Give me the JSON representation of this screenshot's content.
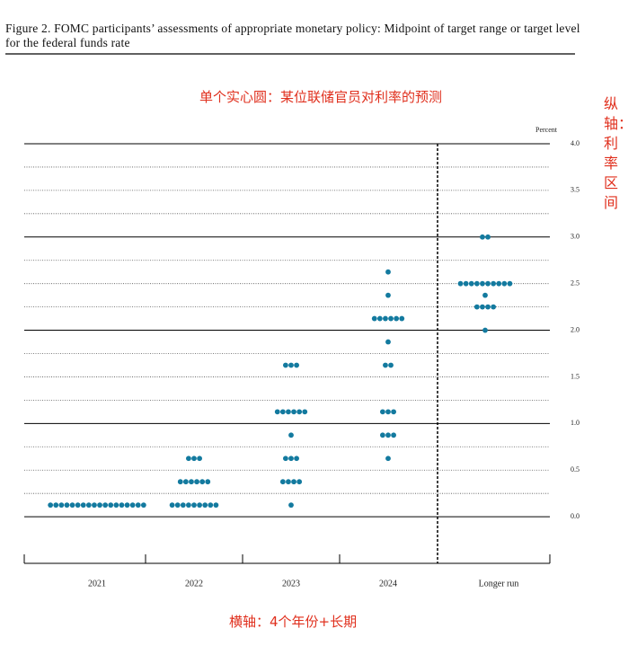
{
  "chart_data": {
    "type": "dot",
    "title": "Figure 2.  FOMC participants’ assessments of appropriate monetary policy: Midpoint of target range or target level for the federal funds rate",
    "y_unit": "Percent",
    "annotations": [
      "单个实心圆：某位联储官员对利率的预测",
      "纵轴：利率区间",
      "横轴：4个年份+长期"
    ],
    "categories": [
      "2021",
      "2022",
      "2023",
      "2024",
      "Longer run"
    ],
    "color": "#137a9f",
    "values": [
      [
        0.125,
        0.125,
        0.125,
        0.125,
        0.125,
        0.125,
        0.125,
        0.125,
        0.125,
        0.125,
        0.125,
        0.125,
        0.125,
        0.125,
        0.125,
        0.125,
        0.125,
        0.125
      ],
      [
        0.125,
        0.125,
        0.125,
        0.125,
        0.125,
        0.125,
        0.125,
        0.125,
        0.125,
        0.375,
        0.375,
        0.375,
        0.375,
        0.375,
        0.375,
        0.625,
        0.625,
        0.625
      ],
      [
        0.125,
        0.375,
        0.375,
        0.375,
        0.375,
        0.625,
        0.625,
        0.625,
        0.875,
        1.125,
        1.125,
        1.125,
        1.125,
        1.125,
        1.125,
        1.625,
        1.625,
        1.625
      ],
      [
        0.625,
        0.875,
        0.875,
        0.875,
        1.125,
        1.125,
        1.125,
        1.625,
        1.625,
        1.875,
        2.125,
        2.125,
        2.125,
        2.125,
        2.125,
        2.125,
        2.375,
        2.625
      ],
      [
        2.0,
        2.25,
        2.25,
        2.25,
        2.25,
        2.375,
        2.5,
        2.5,
        2.5,
        2.5,
        2.5,
        2.5,
        2.5,
        2.5,
        2.5,
        2.5,
        3.0,
        3.0
      ]
    ],
    "ylim": [
      -0.5,
      4.0
    ],
    "yticks": [
      {
        "value": 0,
        "label": "0.0"
      },
      0.5,
      {
        "value": 1,
        "label": "1.0"
      },
      1.5,
      {
        "value": 2,
        "label": "2.0"
      },
      2.5,
      {
        "value": 3,
        "label": "3.0"
      },
      3.5,
      {
        "value": 4,
        "label": "4.0"
      }
    ],
    "minor_yticks": [
      0.25,
      0.75,
      1.25,
      1.75,
      2.25,
      2.75,
      3.25,
      3.75
    ],
    "grid": true
  }
}
